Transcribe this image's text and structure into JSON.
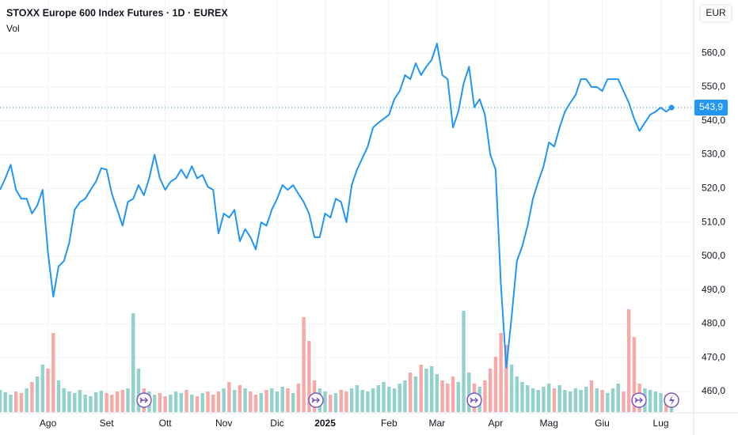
{
  "chart_data": {
    "type": "line",
    "title": "STOXX Europe 600 Index Futures · 1D · EUREX",
    "volume_label": "Vol",
    "currency": "EUR",
    "last_value_label": "543,9",
    "color": "#2196f3",
    "grid": true,
    "categories": [
      null,
      null,
      null,
      null,
      null,
      null,
      null,
      null,
      null,
      "Ago",
      null,
      null,
      null,
      null,
      null,
      null,
      null,
      null,
      null,
      null,
      "Set",
      null,
      null,
      null,
      null,
      null,
      null,
      null,
      null,
      null,
      null,
      "Ott",
      null,
      null,
      null,
      null,
      null,
      null,
      null,
      null,
      null,
      null,
      "Nov",
      null,
      null,
      null,
      null,
      null,
      null,
      null,
      null,
      null,
      "Dic",
      null,
      null,
      null,
      null,
      null,
      null,
      null,
      null,
      "2025",
      null,
      null,
      null,
      null,
      null,
      null,
      null,
      null,
      null,
      null,
      null,
      "Feb",
      null,
      null,
      null,
      null,
      null,
      null,
      null,
      null,
      "Mar",
      null,
      null,
      null,
      null,
      null,
      null,
      null,
      null,
      null,
      null,
      "Apr",
      null,
      null,
      null,
      null,
      null,
      null,
      null,
      null,
      null,
      "Mag",
      null,
      null,
      null,
      null,
      null,
      null,
      null,
      null,
      null,
      "Giu",
      null,
      null,
      null,
      null,
      null,
      null,
      null,
      null,
      null,
      null,
      "Lug",
      null,
      null
    ],
    "values": [
      519.6,
      523,
      527,
      519.6,
      517,
      517,
      512.6,
      515,
      519.6,
      501,
      488,
      497,
      498.6,
      504,
      513.7,
      516,
      517,
      519.6,
      522,
      526,
      525.6,
      518.4,
      513.7,
      509,
      516,
      517,
      521,
      518,
      523,
      530,
      523,
      519.6,
      522,
      523,
      525.6,
      523,
      526.6,
      523,
      524,
      520.5,
      519.6,
      506.7,
      512.6,
      511.4,
      513.7,
      504.4,
      508,
      505.6,
      502,
      510,
      509,
      513.7,
      517,
      521,
      519.6,
      521,
      518.4,
      516,
      512.6,
      505.6,
      505.6,
      512.6,
      511.4,
      517,
      516,
      510,
      521,
      525.6,
      529,
      532.4,
      538,
      539.4,
      540.6,
      541.8,
      546.4,
      548.8,
      553.5,
      552.3,
      557,
      553.5,
      556,
      558,
      562.8,
      553.5,
      552.3,
      538,
      542.7,
      551,
      556,
      544,
      546.4,
      541.8,
      530,
      525.6,
      491.5,
      467,
      482,
      498.6,
      503,
      509,
      517,
      522,
      526.6,
      533.6,
      532.4,
      538,
      542.7,
      545.3,
      547.6,
      552.3,
      552.3,
      550,
      550,
      548.8,
      552.3,
      552.3,
      552.3,
      548.8,
      545.3,
      540.6,
      537,
      539.4,
      541.8,
      542.7,
      543.9,
      542.7,
      543.9
    ],
    "ylim": [
      453.7,
      575.7
    ],
    "yticks": [
      {
        "value": 460,
        "label": "460,0"
      },
      {
        "value": 470,
        "label": "470,0"
      },
      {
        "value": 480,
        "label": "480,0"
      },
      {
        "value": 490,
        "label": "490,0"
      },
      {
        "value": 500,
        "label": "500,0"
      },
      {
        "value": 510,
        "label": "510,0"
      },
      {
        "value": 520,
        "label": "520,0"
      },
      {
        "value": 530,
        "label": "530,0"
      },
      {
        "value": 540,
        "label": "540,0"
      },
      {
        "value": 550,
        "label": "550,0"
      },
      {
        "value": 560,
        "label": "560,0"
      }
    ],
    "volume": {
      "up_color": "#92d2cc",
      "down_color": "#f7a9a7",
      "ylim": [
        0,
        140
      ],
      "values": [
        28,
        25,
        22,
        26,
        24,
        30,
        38,
        45,
        60,
        55,
        100,
        40,
        30,
        26,
        24,
        28,
        22,
        20,
        25,
        27,
        24,
        22,
        26,
        28,
        30,
        125,
        55,
        30,
        26,
        22,
        24,
        20,
        22,
        26,
        24,
        28,
        22,
        20,
        24,
        26,
        22,
        26,
        30,
        38,
        28,
        34,
        30,
        26,
        22,
        24,
        28,
        30,
        26,
        32,
        30,
        24,
        36,
        120,
        90,
        40,
        30,
        26,
        22,
        24,
        28,
        26,
        30,
        34,
        28,
        26,
        30,
        34,
        38,
        32,
        30,
        36,
        40,
        50,
        45,
        60,
        55,
        58,
        48,
        40,
        36,
        45,
        38,
        128,
        50,
        36,
        32,
        40,
        55,
        70,
        100,
        85,
        60,
        45,
        38,
        34,
        30,
        28,
        32,
        36,
        30,
        34,
        28,
        26,
        30,
        28,
        32,
        40,
        30,
        28,
        24,
        30,
        36,
        26,
        130,
        95,
        36,
        30,
        28,
        26,
        24,
        22,
        20
      ]
    }
  }
}
